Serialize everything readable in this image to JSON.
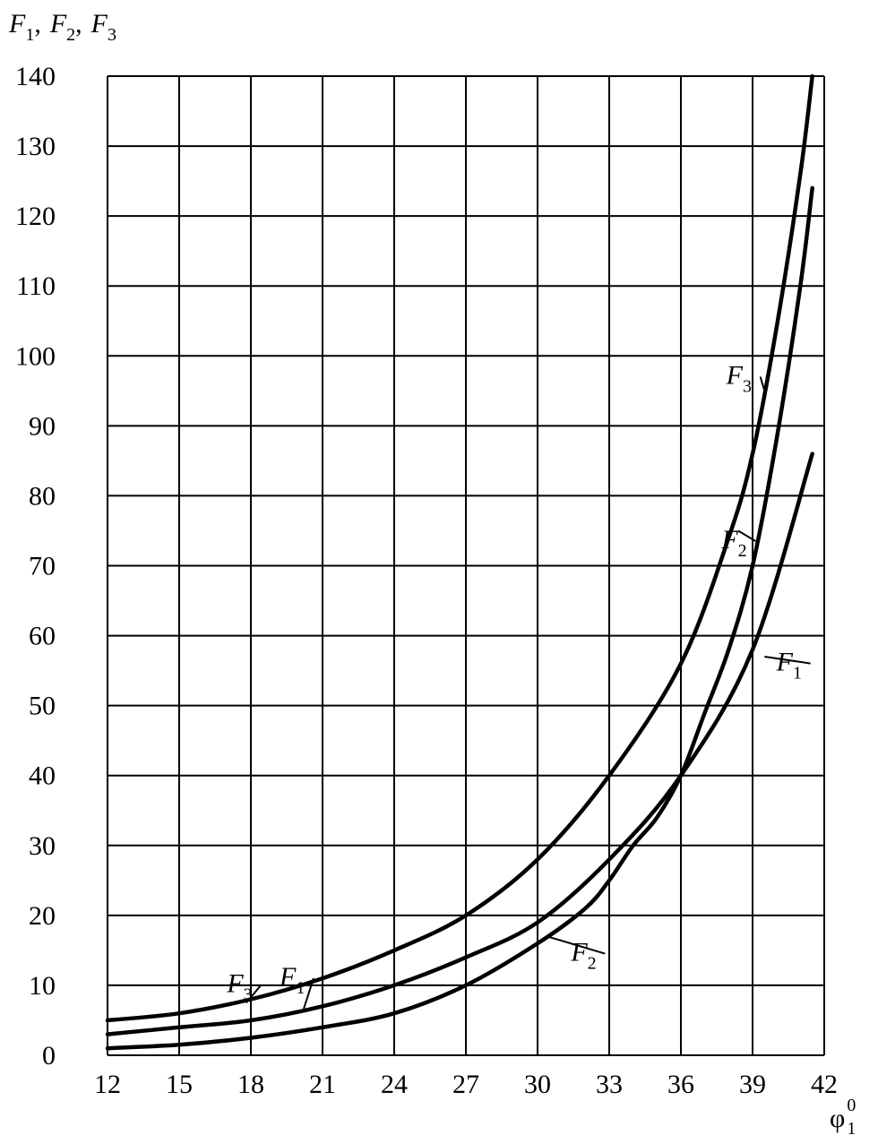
{
  "chart_data": {
    "type": "line",
    "title": "",
    "ylabel": "F1, F2, F3",
    "ylabel_parts": [
      {
        "main": "F",
        "sub": "1",
        "sep": ","
      },
      {
        "main": "F",
        "sub": "2",
        "sep": ","
      },
      {
        "main": "F",
        "sub": "3",
        "sep": ""
      }
    ],
    "xlabel": "φ10",
    "xlabel_parts": {
      "main": "φ",
      "sup": "0",
      "sub": "1"
    },
    "xlim": [
      12,
      42
    ],
    "ylim": [
      0,
      140
    ],
    "x_ticks": [
      12,
      15,
      18,
      21,
      24,
      27,
      30,
      33,
      36,
      39,
      42
    ],
    "y_ticks": [
      0,
      10,
      20,
      30,
      40,
      50,
      60,
      70,
      80,
      90,
      100,
      110,
      120,
      130,
      140
    ],
    "grid": true,
    "legend": "none",
    "series": [
      {
        "name": "F1",
        "main": "F",
        "sub": "1",
        "x": [
          12,
          15,
          18,
          21,
          24,
          27,
          30,
          33,
          36,
          39,
          41.5
        ],
        "y": [
          3,
          4,
          5,
          7,
          10,
          14,
          19,
          28,
          40,
          58,
          86
        ]
      },
      {
        "name": "F2",
        "main": "F",
        "sub": "2",
        "x": [
          12,
          15,
          18,
          21,
          24,
          27,
          30,
          32,
          33,
          34,
          35,
          36,
          37,
          38,
          39,
          40,
          41,
          41.5
        ],
        "y": [
          1,
          1.5,
          2.5,
          4,
          6,
          10,
          16,
          21,
          25,
          30,
          34,
          40,
          49,
          58,
          70,
          88,
          110,
          124
        ]
      },
      {
        "name": "F3",
        "main": "F",
        "sub": "3",
        "x": [
          12,
          15,
          18,
          21,
          24,
          27,
          30,
          33,
          36,
          38,
          39,
          40,
          41,
          41.5
        ],
        "y": [
          5,
          6,
          8,
          11,
          15,
          20,
          28,
          40,
          56,
          74,
          86,
          104,
          126,
          140
        ]
      }
    ],
    "annotations": [
      {
        "series": "F3",
        "main": "F",
        "sub": "3",
        "at": [
          17,
          9
        ],
        "arrow_to": [
          17.8,
          7.5
        ]
      },
      {
        "series": "F1",
        "main": "F",
        "sub": "1",
        "at": [
          19.2,
          10
        ],
        "arrow_to": [
          20.2,
          6.5
        ]
      },
      {
        "series": "F2",
        "main": "F",
        "sub": "2",
        "at": [
          31.4,
          13.5
        ],
        "arrow_to": [
          30.4,
          17
        ]
      },
      {
        "series": "F1",
        "main": "F",
        "sub": "1",
        "at": [
          40,
          55
        ],
        "arrow_to": [
          39.5,
          57
        ]
      },
      {
        "series": "F2",
        "main": "F",
        "sub": "2",
        "at": [
          37.7,
          72.5
        ],
        "arrow_to": [
          38.4,
          75
        ]
      },
      {
        "series": "F3",
        "main": "F",
        "sub": "3",
        "at": [
          37.9,
          96
        ],
        "arrow_to": [
          39.5,
          95
        ]
      }
    ]
  }
}
